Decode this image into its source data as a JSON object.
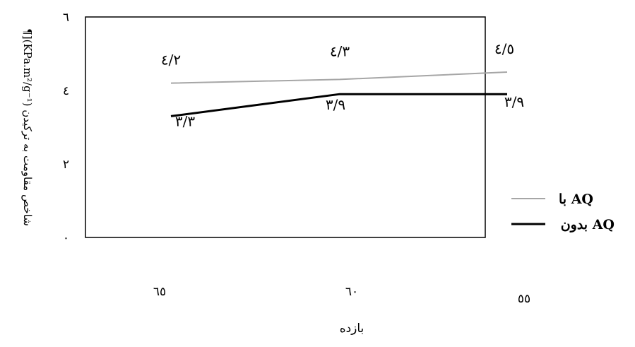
{
  "chart_data": {
    "type": "line",
    "title": "",
    "xlabel": "بازده",
    "ylabel": "¶](KPa.m²/g⁻¹) شاخص مقاومت به ترکیدن",
    "categories": [
      "٦٥",
      "٦٠",
      "٥٥"
    ],
    "y_ticks": [
      "٠",
      "٢",
      "٤",
      "٦"
    ],
    "ylim": [
      0,
      6
    ],
    "grid": false,
    "legend_position": "bottom-right",
    "series": [
      {
        "name": "با AQ",
        "color": "#a6a6a6",
        "values": [
          4.2,
          4.3,
          4.5
        ],
        "labels": [
          "٤/٢",
          "٤/٣",
          "٤/٥"
        ]
      },
      {
        "name": "بدون AQ",
        "color": "#000000",
        "values": [
          3.3,
          3.9,
          3.9
        ],
        "labels": [
          "٣/٣",
          "٣/٩",
          "٣/٩"
        ]
      }
    ]
  }
}
